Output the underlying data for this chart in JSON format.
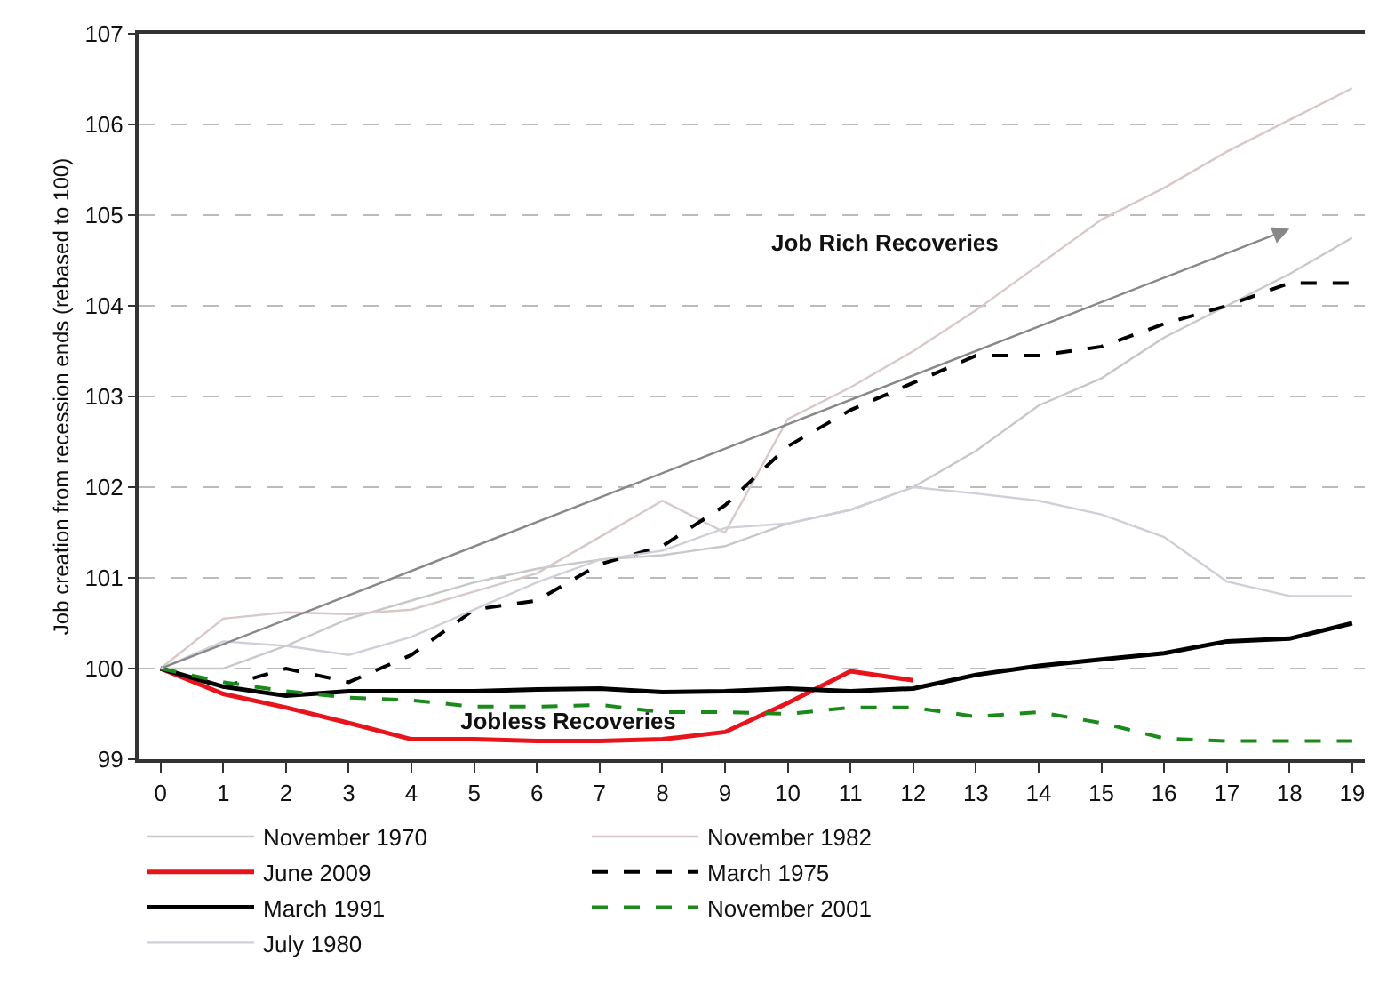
{
  "chart_data": {
    "type": "line",
    "ylabel": "Job creation from recession ends (rebased to 100)",
    "x": [
      0,
      1,
      2,
      3,
      4,
      5,
      6,
      7,
      8,
      9,
      10,
      11,
      12,
      13,
      14,
      15,
      16,
      17,
      18,
      19
    ],
    "xlim": [
      -0.35,
      19.2
    ],
    "xticks": [
      0,
      1,
      2,
      3,
      4,
      5,
      6,
      7,
      8,
      9,
      10,
      11,
      12,
      13,
      14,
      15,
      16,
      17,
      18,
      19
    ],
    "ylim": [
      99,
      107
    ],
    "yticks": [
      99,
      100,
      101,
      102,
      103,
      104,
      105,
      106,
      107
    ],
    "grid": "y",
    "legend": "bottom",
    "marker": "none",
    "series": [
      {
        "name": "November 1970",
        "color": "#c8c8c8",
        "line_style": "solid",
        "values": [
          100,
          100.0,
          100.25,
          100.55,
          100.75,
          100.95,
          101.1,
          101.2,
          101.25,
          101.35,
          101.6,
          101.75,
          102.0,
          102.4,
          102.9,
          103.2,
          103.65,
          104.0,
          104.35,
          104.75
        ]
      },
      {
        "name": "November 1982",
        "color": "#d9c8c8",
        "line_style": "solid",
        "values": [
          100,
          100.55,
          100.62,
          100.6,
          100.65,
          100.85,
          101.05,
          101.45,
          101.85,
          101.5,
          102.75,
          103.1,
          103.5,
          103.95,
          104.45,
          104.95,
          105.3,
          105.7,
          106.05,
          106.4
        ]
      },
      {
        "name": "June 2009",
        "color": "#e8141c",
        "line_style": "solid",
        "values": [
          100,
          99.72,
          99.57,
          99.4,
          99.22,
          99.22,
          99.2,
          99.2,
          99.22,
          99.3,
          99.62,
          99.97,
          99.87,
          null,
          null,
          null,
          null,
          null,
          null,
          null
        ]
      },
      {
        "name": "March 1975",
        "color": "#000000",
        "line_style": "dashed",
        "values": [
          100,
          99.8,
          100.0,
          99.85,
          100.15,
          100.65,
          100.75,
          101.15,
          101.35,
          101.8,
          102.45,
          102.85,
          103.15,
          103.45,
          103.45,
          103.55,
          103.8,
          104.0,
          104.25,
          104.25
        ]
      },
      {
        "name": "March 1991",
        "color": "#000000",
        "line_style": "solid",
        "values": [
          100,
          99.8,
          99.7,
          99.75,
          99.75,
          99.75,
          99.77,
          99.78,
          99.74,
          99.75,
          99.78,
          99.75,
          99.78,
          99.93,
          100.03,
          100.1,
          100.17,
          100.3,
          100.33,
          100.5
        ]
      },
      {
        "name": "November 2001",
        "color": "#1a8a1a",
        "line_style": "dashed",
        "values": [
          100,
          99.85,
          99.75,
          99.68,
          99.65,
          99.58,
          99.58,
          99.6,
          99.52,
          99.52,
          99.5,
          99.57,
          99.57,
          99.47,
          99.52,
          99.4,
          99.23,
          99.2,
          99.2,
          99.2
        ]
      },
      {
        "name": "July 1980",
        "color": "#cfcfd8",
        "line_style": "solid",
        "values": [
          100,
          100.3,
          100.25,
          100.15,
          100.35,
          100.65,
          100.95,
          101.2,
          101.3,
          101.55,
          101.6,
          101.75,
          102.0,
          101.93,
          101.85,
          101.7,
          101.45,
          100.96,
          100.8,
          100.8
        ]
      }
    ],
    "annotations": [
      "Job Rich Recoveries",
      "Jobless Recoveries"
    ]
  }
}
